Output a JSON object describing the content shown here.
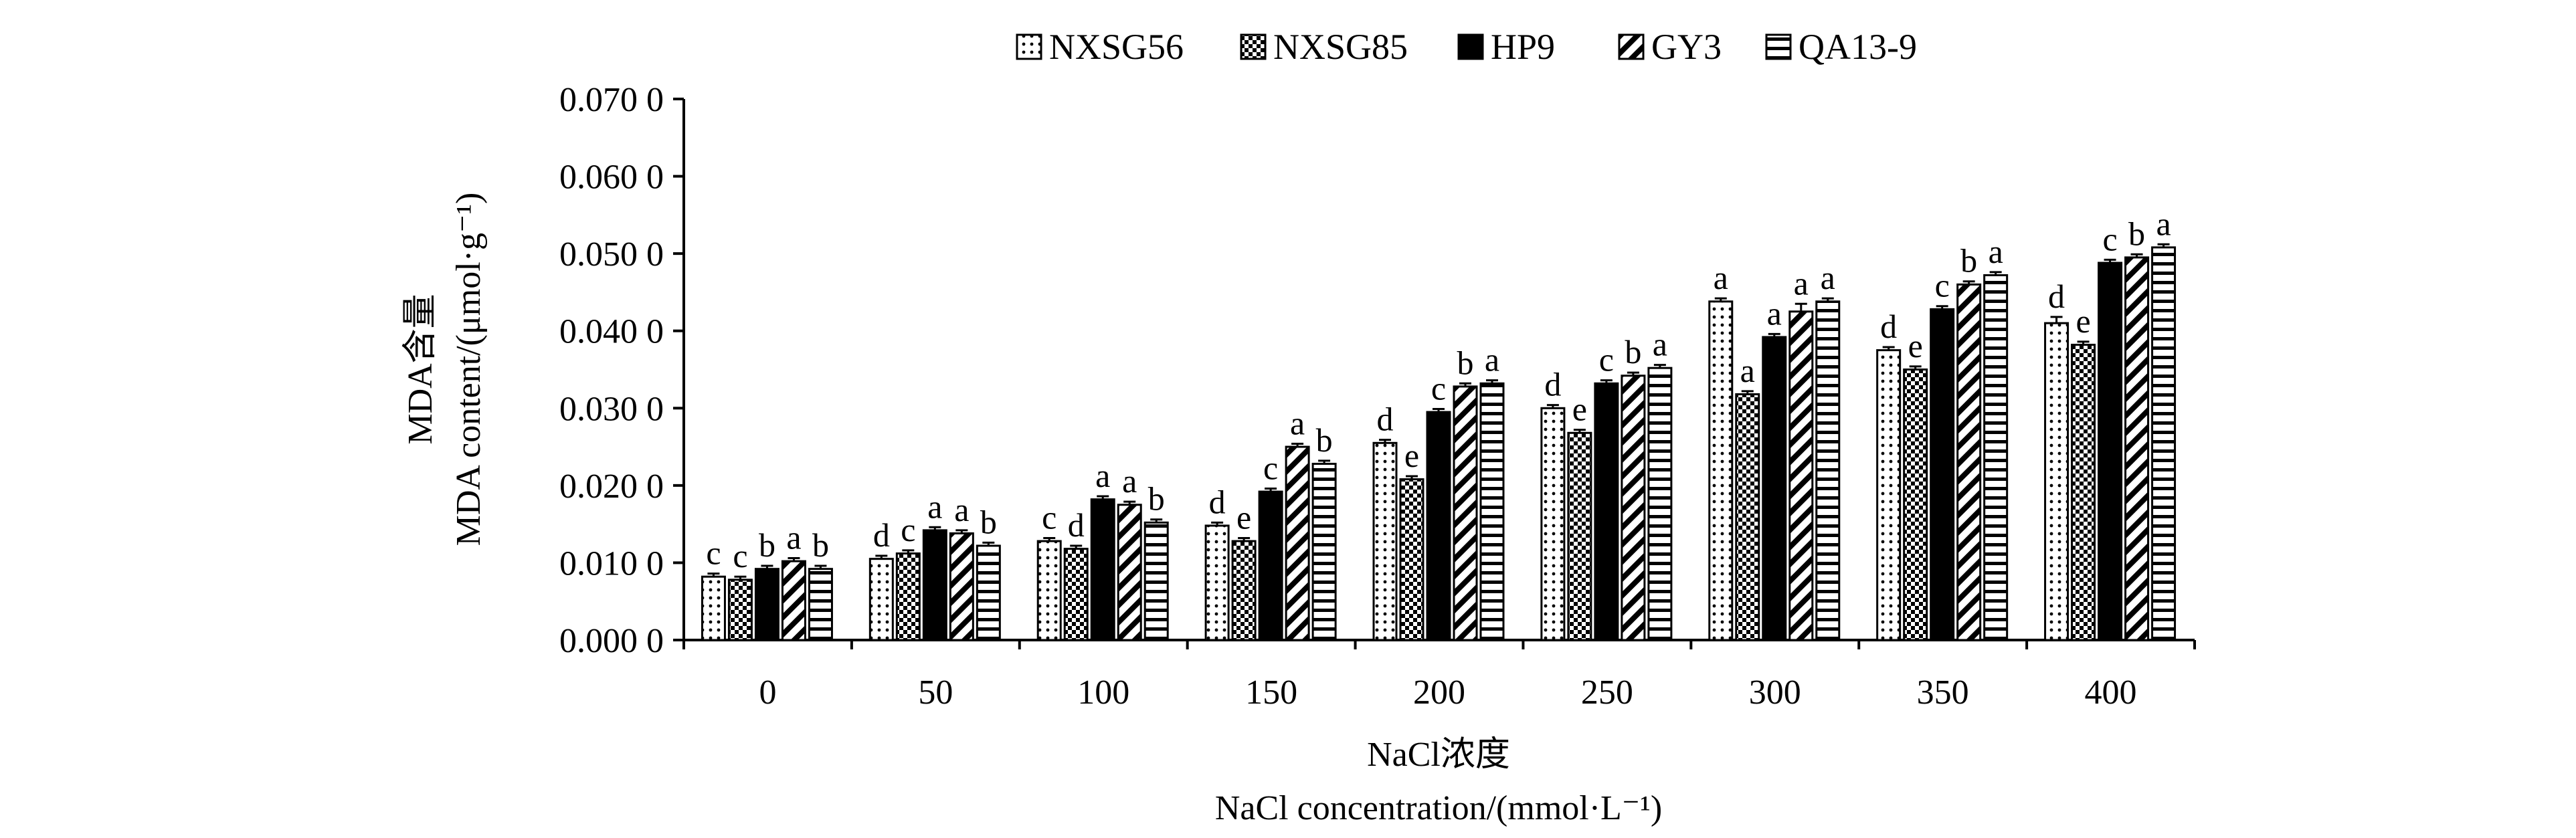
{
  "chart_data": {
    "type": "bar",
    "categories": [
      "0",
      "50",
      "100",
      "150",
      "200",
      "250",
      "300",
      "350",
      "400"
    ],
    "series": [
      {
        "name": "NXSG56",
        "pattern": "dots",
        "values": [
          0.0082,
          0.0105,
          0.0128,
          0.0148,
          0.0255,
          0.03,
          0.0438,
          0.0375,
          0.041
        ],
        "errors": [
          0.0004,
          0.0004,
          0.0004,
          0.0004,
          0.0004,
          0.0004,
          0.0004,
          0.0004,
          0.0008
        ],
        "letters": [
          "c",
          "d",
          "c",
          "d",
          "d",
          "d",
          "a",
          "d",
          "d"
        ]
      },
      {
        "name": "NXSG85",
        "pattern": "checker",
        "values": [
          0.0078,
          0.0112,
          0.0118,
          0.0128,
          0.0208,
          0.0268,
          0.0318,
          0.035,
          0.0382
        ],
        "errors": [
          0.0004,
          0.0004,
          0.0004,
          0.0004,
          0.0004,
          0.0004,
          0.0004,
          0.0004,
          0.0004
        ],
        "letters": [
          "c",
          "c",
          "d",
          "e",
          "e",
          "e",
          "a",
          "e",
          "e"
        ]
      },
      {
        "name": "HP9",
        "pattern": "solid",
        "values": [
          0.0092,
          0.0142,
          0.0182,
          0.0192,
          0.0295,
          0.0332,
          0.0392,
          0.0428,
          0.0488
        ],
        "errors": [
          0.0004,
          0.0004,
          0.0004,
          0.0004,
          0.0004,
          0.0004,
          0.0004,
          0.0004,
          0.0004
        ],
        "letters": [
          "b",
          "a",
          "a",
          "c",
          "c",
          "c",
          "a",
          "c",
          "c"
        ]
      },
      {
        "name": "GY3",
        "pattern": "diagonal",
        "values": [
          0.0102,
          0.0138,
          0.0175,
          0.025,
          0.0328,
          0.0342,
          0.0425,
          0.046,
          0.0495
        ],
        "errors": [
          0.0004,
          0.0004,
          0.0004,
          0.0004,
          0.0004,
          0.0004,
          0.001,
          0.0004,
          0.0004
        ],
        "letters": [
          "a",
          "a",
          "a",
          "a",
          "b",
          "b",
          "a",
          "b",
          "b"
        ]
      },
      {
        "name": "QA13-9",
        "pattern": "horizontal",
        "values": [
          0.0092,
          0.0122,
          0.0152,
          0.0228,
          0.0332,
          0.0352,
          0.0438,
          0.0472,
          0.0508
        ],
        "errors": [
          0.0004,
          0.0004,
          0.0004,
          0.0004,
          0.0004,
          0.0004,
          0.0004,
          0.0004,
          0.0004
        ],
        "letters": [
          "b",
          "b",
          "b",
          "b",
          "a",
          "a",
          "a",
          "a",
          "a"
        ]
      }
    ],
    "ylim": [
      0,
      0.07
    ],
    "yticks": [
      "0.000 0",
      "0.010 0",
      "0.020 0",
      "0.030 0",
      "0.040 0",
      "0.050 0",
      "0.060 0",
      "0.070 0"
    ],
    "ylabel_cn": "MDA含量",
    "ylabel_en": "MDA content/(μmol·g⁻¹)",
    "xlabel_cn": "NaCl浓度",
    "xlabel_en": "NaCl concentration/(mmol·L⁻¹)",
    "legend_position": "top",
    "grid": false
  }
}
